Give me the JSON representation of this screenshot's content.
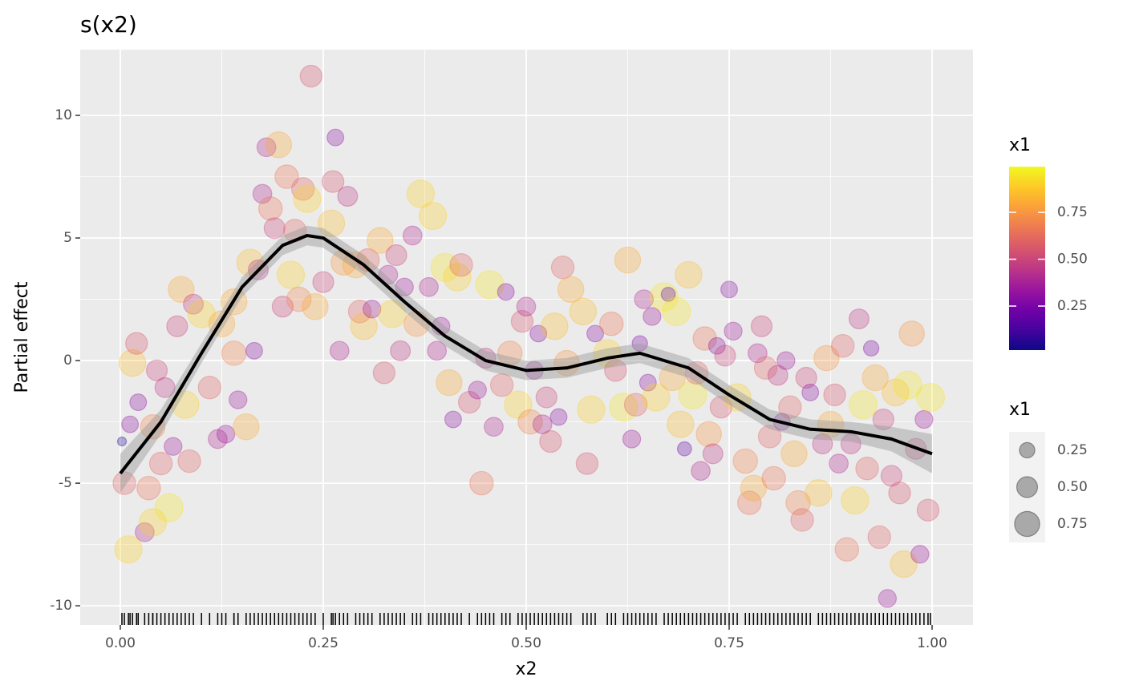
{
  "chart_data": {
    "type": "scatter",
    "title": "s(x2)",
    "x_label": "x2",
    "y_label": "Partial effect",
    "xlim": [
      -0.0494,
      1.0504
    ],
    "ylim": [
      -10.78,
      12.68
    ],
    "xticks": [
      {
        "value": 0,
        "label": "0.00"
      },
      0.25,
      {
        "value": 0.5,
        "label": "0.50"
      },
      0.75,
      {
        "value": 1,
        "label": "1.00"
      }
    ],
    "yticks": [
      -10,
      -5,
      0,
      5,
      10
    ],
    "grid": true,
    "colormap": "plasma",
    "color_range": [
      0.015,
      0.994
    ],
    "color_title": "x1",
    "color_ticks": [
      0.25,
      {
        "value": 0.5,
        "label": "0.50"
      },
      0.75
    ],
    "size_title": "x1",
    "size_breaks": [
      0.25,
      {
        "value": 0.5,
        "label": "0.50"
      },
      0.75
    ],
    "rug": true,
    "points": [
      {
        "x": 0.002,
        "y": -3.3,
        "x1": 0.05
      },
      {
        "x": 0.005,
        "y": -5.0,
        "x1": 0.6
      },
      {
        "x": 0.01,
        "y": -7.7,
        "x1": 0.9
      },
      {
        "x": 0.012,
        "y": -2.6,
        "x1": 0.3
      },
      {
        "x": 0.015,
        "y": -0.1,
        "x1": 0.85
      },
      {
        "x": 0.02,
        "y": 0.7,
        "x1": 0.55
      },
      {
        "x": 0.022,
        "y": -1.7,
        "x1": 0.3
      },
      {
        "x": 0.03,
        "y": -7.0,
        "x1": 0.4
      },
      {
        "x": 0.035,
        "y": -5.2,
        "x1": 0.65
      },
      {
        "x": 0.04,
        "y": -6.6,
        "x1": 0.9
      },
      {
        "x": 0.04,
        "y": -2.7,
        "x1": 0.7
      },
      {
        "x": 0.045,
        "y": -0.4,
        "x1": 0.5
      },
      {
        "x": 0.05,
        "y": -4.2,
        "x1": 0.6
      },
      {
        "x": 0.055,
        "y": -1.1,
        "x1": 0.45
      },
      {
        "x": 0.06,
        "y": -6.0,
        "x1": 0.95
      },
      {
        "x": 0.065,
        "y": -3.5,
        "x1": 0.35
      },
      {
        "x": 0.07,
        "y": 1.4,
        "x1": 0.5
      },
      {
        "x": 0.075,
        "y": 2.9,
        "x1": 0.8
      },
      {
        "x": 0.08,
        "y": -1.8,
        "x1": 0.9
      },
      {
        "x": 0.085,
        "y": -4.1,
        "x1": 0.6
      },
      {
        "x": 0.09,
        "y": 2.3,
        "x1": 0.45
      },
      {
        "x": 0.1,
        "y": 1.9,
        "x1": 0.9
      },
      {
        "x": 0.11,
        "y": -1.1,
        "x1": 0.6
      },
      {
        "x": 0.12,
        "y": -3.2,
        "x1": 0.4
      },
      {
        "x": 0.125,
        "y": 1.5,
        "x1": 0.8
      },
      {
        "x": 0.13,
        "y": -3.0,
        "x1": 0.35
      },
      {
        "x": 0.14,
        "y": 0.3,
        "x1": 0.7
      },
      {
        "x": 0.14,
        "y": 2.4,
        "x1": 0.8
      },
      {
        "x": 0.145,
        "y": -1.6,
        "x1": 0.35
      },
      {
        "x": 0.155,
        "y": -2.7,
        "x1": 0.8
      },
      {
        "x": 0.16,
        "y": 4.0,
        "x1": 0.85
      },
      {
        "x": 0.165,
        "y": 0.4,
        "x1": 0.3
      },
      {
        "x": 0.17,
        "y": 3.7,
        "x1": 0.45
      },
      {
        "x": 0.175,
        "y": 6.8,
        "x1": 0.4
      },
      {
        "x": 0.18,
        "y": 8.7,
        "x1": 0.4
      },
      {
        "x": 0.185,
        "y": 6.2,
        "x1": 0.65
      },
      {
        "x": 0.19,
        "y": 5.4,
        "x1": 0.5
      },
      {
        "x": 0.195,
        "y": 8.8,
        "x1": 0.8
      },
      {
        "x": 0.2,
        "y": 2.2,
        "x1": 0.5
      },
      {
        "x": 0.205,
        "y": 7.5,
        "x1": 0.65
      },
      {
        "x": 0.21,
        "y": 3.5,
        "x1": 0.9
      },
      {
        "x": 0.215,
        "y": 5.3,
        "x1": 0.6
      },
      {
        "x": 0.22,
        "y": 2.5,
        "x1": 0.7
      },
      {
        "x": 0.225,
        "y": 7.0,
        "x1": 0.6
      },
      {
        "x": 0.23,
        "y": 6.6,
        "x1": 0.9
      },
      {
        "x": 0.235,
        "y": 11.6,
        "x1": 0.55
      },
      {
        "x": 0.24,
        "y": 2.2,
        "x1": 0.8
      },
      {
        "x": 0.25,
        "y": 3.2,
        "x1": 0.5
      },
      {
        "x": 0.26,
        "y": 5.6,
        "x1": 0.85
      },
      {
        "x": 0.262,
        "y": 7.3,
        "x1": 0.55
      },
      {
        "x": 0.265,
        "y": 9.1,
        "x1": 0.3
      },
      {
        "x": 0.27,
        "y": 0.4,
        "x1": 0.4
      },
      {
        "x": 0.275,
        "y": 4.0,
        "x1": 0.75
      },
      {
        "x": 0.28,
        "y": 6.7,
        "x1": 0.45
      },
      {
        "x": 0.29,
        "y": 3.9,
        "x1": 0.8
      },
      {
        "x": 0.295,
        "y": 2.0,
        "x1": 0.6
      },
      {
        "x": 0.3,
        "y": 1.4,
        "x1": 0.85
      },
      {
        "x": 0.305,
        "y": 4.1,
        "x1": 0.6
      },
      {
        "x": 0.31,
        "y": 2.1,
        "x1": 0.35
      },
      {
        "x": 0.32,
        "y": 4.9,
        "x1": 0.8
      },
      {
        "x": 0.325,
        "y": -0.5,
        "x1": 0.55
      },
      {
        "x": 0.33,
        "y": 3.5,
        "x1": 0.4
      },
      {
        "x": 0.335,
        "y": 1.9,
        "x1": 0.9
      },
      {
        "x": 0.34,
        "y": 4.3,
        "x1": 0.5
      },
      {
        "x": 0.345,
        "y": 0.4,
        "x1": 0.45
      },
      {
        "x": 0.35,
        "y": 3.0,
        "x1": 0.35
      },
      {
        "x": 0.36,
        "y": 5.1,
        "x1": 0.4
      },
      {
        "x": 0.365,
        "y": 1.5,
        "x1": 0.75
      },
      {
        "x": 0.37,
        "y": 6.8,
        "x1": 0.9
      },
      {
        "x": 0.38,
        "y": 3.0,
        "x1": 0.4
      },
      {
        "x": 0.385,
        "y": 5.9,
        "x1": 0.9
      },
      {
        "x": 0.39,
        "y": 0.4,
        "x1": 0.4
      },
      {
        "x": 0.395,
        "y": 1.4,
        "x1": 0.35
      },
      {
        "x": 0.4,
        "y": 3.8,
        "x1": 0.95
      },
      {
        "x": 0.405,
        "y": -0.9,
        "x1": 0.8
      },
      {
        "x": 0.41,
        "y": -2.4,
        "x1": 0.3
      },
      {
        "x": 0.415,
        "y": 3.4,
        "x1": 0.9
      },
      {
        "x": 0.42,
        "y": 3.9,
        "x1": 0.6
      },
      {
        "x": 0.43,
        "y": -1.7,
        "x1": 0.55
      },
      {
        "x": 0.44,
        "y": -1.2,
        "x1": 0.35
      },
      {
        "x": 0.445,
        "y": -5.0,
        "x1": 0.65
      },
      {
        "x": 0.45,
        "y": 0.1,
        "x1": 0.45
      },
      {
        "x": 0.455,
        "y": 3.1,
        "x1": 0.95
      },
      {
        "x": 0.46,
        "y": -2.7,
        "x1": 0.4
      },
      {
        "x": 0.47,
        "y": -1.0,
        "x1": 0.6
      },
      {
        "x": 0.475,
        "y": 2.8,
        "x1": 0.3
      },
      {
        "x": 0.48,
        "y": 0.3,
        "x1": 0.7
      },
      {
        "x": 0.49,
        "y": -1.8,
        "x1": 0.9
      },
      {
        "x": 0.495,
        "y": 1.6,
        "x1": 0.55
      },
      {
        "x": 0.5,
        "y": 2.2,
        "x1": 0.4
      },
      {
        "x": 0.505,
        "y": -2.5,
        "x1": 0.7
      },
      {
        "x": 0.51,
        "y": -0.4,
        "x1": 0.35
      },
      {
        "x": 0.515,
        "y": 1.1,
        "x1": 0.3
      },
      {
        "x": 0.52,
        "y": -2.6,
        "x1": 0.4
      },
      {
        "x": 0.525,
        "y": -1.5,
        "x1": 0.5
      },
      {
        "x": 0.53,
        "y": -3.3,
        "x1": 0.55
      },
      {
        "x": 0.535,
        "y": 1.4,
        "x1": 0.85
      },
      {
        "x": 0.54,
        "y": -2.3,
        "x1": 0.3
      },
      {
        "x": 0.545,
        "y": 3.8,
        "x1": 0.6
      },
      {
        "x": 0.55,
        "y": -0.1,
        "x1": 0.75
      },
      {
        "x": 0.555,
        "y": 2.9,
        "x1": 0.8
      },
      {
        "x": 0.57,
        "y": 2.0,
        "x1": 0.85
      },
      {
        "x": 0.575,
        "y": -4.2,
        "x1": 0.55
      },
      {
        "x": 0.58,
        "y": -2.0,
        "x1": 0.9
      },
      {
        "x": 0.585,
        "y": 1.1,
        "x1": 0.3
      },
      {
        "x": 0.6,
        "y": 0.3,
        "x1": 0.9
      },
      {
        "x": 0.605,
        "y": 1.5,
        "x1": 0.65
      },
      {
        "x": 0.61,
        "y": -0.4,
        "x1": 0.55
      },
      {
        "x": 0.62,
        "y": -1.9,
        "x1": 0.95
      },
      {
        "x": 0.625,
        "y": 4.1,
        "x1": 0.8
      },
      {
        "x": 0.63,
        "y": -3.2,
        "x1": 0.35
      },
      {
        "x": 0.635,
        "y": -1.8,
        "x1": 0.6
      },
      {
        "x": 0.64,
        "y": 0.7,
        "x1": 0.25
      },
      {
        "x": 0.645,
        "y": 2.5,
        "x1": 0.4
      },
      {
        "x": 0.65,
        "y": -0.9,
        "x1": 0.3
      },
      {
        "x": 0.655,
        "y": 1.8,
        "x1": 0.35
      },
      {
        "x": 0.66,
        "y": -1.5,
        "x1": 0.9
      },
      {
        "x": 0.67,
        "y": 2.6,
        "x1": 0.95
      },
      {
        "x": 0.675,
        "y": 2.7,
        "x1": 0.2
      },
      {
        "x": 0.68,
        "y": -0.7,
        "x1": 0.8
      },
      {
        "x": 0.685,
        "y": 2.0,
        "x1": 0.95
      },
      {
        "x": 0.69,
        "y": -2.6,
        "x1": 0.85
      },
      {
        "x": 0.695,
        "y": -3.6,
        "x1": 0.2
      },
      {
        "x": 0.7,
        "y": 3.5,
        "x1": 0.85
      },
      {
        "x": 0.705,
        "y": -1.4,
        "x1": 0.95
      },
      {
        "x": 0.71,
        "y": -0.5,
        "x1": 0.6
      },
      {
        "x": 0.715,
        "y": -4.5,
        "x1": 0.4
      },
      {
        "x": 0.72,
        "y": 0.9,
        "x1": 0.65
      },
      {
        "x": 0.725,
        "y": -3.0,
        "x1": 0.75
      },
      {
        "x": 0.73,
        "y": -3.8,
        "x1": 0.45
      },
      {
        "x": 0.735,
        "y": 0.6,
        "x1": 0.3
      },
      {
        "x": 0.74,
        "y": -1.9,
        "x1": 0.55
      },
      {
        "x": 0.745,
        "y": 0.2,
        "x1": 0.5
      },
      {
        "x": 0.75,
        "y": 2.9,
        "x1": 0.3
      },
      {
        "x": 0.755,
        "y": 1.2,
        "x1": 0.35
      },
      {
        "x": 0.76,
        "y": -1.5,
        "x1": 0.9
      },
      {
        "x": 0.77,
        "y": -4.1,
        "x1": 0.7
      },
      {
        "x": 0.775,
        "y": -5.8,
        "x1": 0.65
      },
      {
        "x": 0.78,
        "y": -5.2,
        "x1": 0.8
      },
      {
        "x": 0.785,
        "y": 0.3,
        "x1": 0.4
      },
      {
        "x": 0.79,
        "y": 1.4,
        "x1": 0.5
      },
      {
        "x": 0.795,
        "y": -0.3,
        "x1": 0.6
      },
      {
        "x": 0.8,
        "y": -3.1,
        "x1": 0.6
      },
      {
        "x": 0.805,
        "y": -4.8,
        "x1": 0.65
      },
      {
        "x": 0.81,
        "y": -0.6,
        "x1": 0.45
      },
      {
        "x": 0.815,
        "y": -2.5,
        "x1": 0.3
      },
      {
        "x": 0.82,
        "y": 0.0,
        "x1": 0.35
      },
      {
        "x": 0.825,
        "y": -1.9,
        "x1": 0.6
      },
      {
        "x": 0.83,
        "y": -3.8,
        "x1": 0.8
      },
      {
        "x": 0.835,
        "y": -5.8,
        "x1": 0.7
      },
      {
        "x": 0.84,
        "y": -6.5,
        "x1": 0.6
      },
      {
        "x": 0.845,
        "y": -0.7,
        "x1": 0.5
      },
      {
        "x": 0.85,
        "y": -1.3,
        "x1": 0.3
      },
      {
        "x": 0.86,
        "y": -5.4,
        "x1": 0.85
      },
      {
        "x": 0.865,
        "y": -3.4,
        "x1": 0.45
      },
      {
        "x": 0.87,
        "y": 0.1,
        "x1": 0.75
      },
      {
        "x": 0.875,
        "y": -2.6,
        "x1": 0.8
      },
      {
        "x": 0.88,
        "y": -1.4,
        "x1": 0.55
      },
      {
        "x": 0.885,
        "y": -4.2,
        "x1": 0.4
      },
      {
        "x": 0.89,
        "y": 0.6,
        "x1": 0.6
      },
      {
        "x": 0.895,
        "y": -7.7,
        "x1": 0.65
      },
      {
        "x": 0.9,
        "y": -3.4,
        "x1": 0.45
      },
      {
        "x": 0.905,
        "y": -5.7,
        "x1": 0.9
      },
      {
        "x": 0.91,
        "y": 1.7,
        "x1": 0.45
      },
      {
        "x": 0.915,
        "y": -1.8,
        "x1": 0.95
      },
      {
        "x": 0.92,
        "y": -4.4,
        "x1": 0.6
      },
      {
        "x": 0.925,
        "y": 0.5,
        "x1": 0.25
      },
      {
        "x": 0.93,
        "y": -0.7,
        "x1": 0.8
      },
      {
        "x": 0.935,
        "y": -7.2,
        "x1": 0.6
      },
      {
        "x": 0.94,
        "y": -2.4,
        "x1": 0.5
      },
      {
        "x": 0.945,
        "y": -9.7,
        "x1": 0.35
      },
      {
        "x": 0.95,
        "y": -4.7,
        "x1": 0.5
      },
      {
        "x": 0.955,
        "y": -1.3,
        "x1": 0.85
      },
      {
        "x": 0.96,
        "y": -5.4,
        "x1": 0.55
      },
      {
        "x": 0.965,
        "y": -8.3,
        "x1": 0.85
      },
      {
        "x": 0.97,
        "y": -1.0,
        "x1": 0.95
      },
      {
        "x": 0.975,
        "y": 1.1,
        "x1": 0.75
      },
      {
        "x": 0.98,
        "y": -3.6,
        "x1": 0.5
      },
      {
        "x": 0.985,
        "y": -7.9,
        "x1": 0.35
      },
      {
        "x": 0.99,
        "y": -2.4,
        "x1": 0.35
      },
      {
        "x": 0.995,
        "y": -6.1,
        "x1": 0.55
      },
      {
        "x": 0.998,
        "y": -1.5,
        "x1": 0.95
      }
    ],
    "smooth": {
      "color": "#000000",
      "band_color": "#999999",
      "x": [
        0,
        0.05,
        0.1,
        0.15,
        0.2,
        0.23,
        0.25,
        0.3,
        0.35,
        0.4,
        0.45,
        0.5,
        0.55,
        0.6,
        0.64,
        0.7,
        0.75,
        0.8,
        0.85,
        0.9,
        0.95,
        1
      ],
      "y": [
        -4.6,
        -2.5,
        0.3,
        3.0,
        4.7,
        5.1,
        5.0,
        3.9,
        2.4,
        1.0,
        0.0,
        -0.4,
        -0.3,
        0.1,
        0.3,
        -0.3,
        -1.4,
        -2.4,
        -2.8,
        -2.9,
        -3.2,
        -3.8
      ],
      "lower": [
        -5.4,
        -3.0,
        -0.1,
        2.6,
        4.3,
        4.7,
        4.6,
        3.5,
        2.0,
        0.6,
        -0.4,
        -0.8,
        -0.7,
        -0.3,
        -0.1,
        -0.7,
        -1.8,
        -2.8,
        -3.2,
        -3.3,
        -3.7,
        -4.6
      ],
      "upper": [
        -3.8,
        -2.0,
        0.7,
        3.4,
        5.1,
        5.5,
        5.4,
        4.3,
        2.8,
        1.4,
        0.4,
        0.0,
        0.1,
        0.5,
        0.7,
        0.1,
        -1.0,
        -2.0,
        -2.4,
        -2.5,
        -2.7,
        -3.0
      ]
    }
  }
}
